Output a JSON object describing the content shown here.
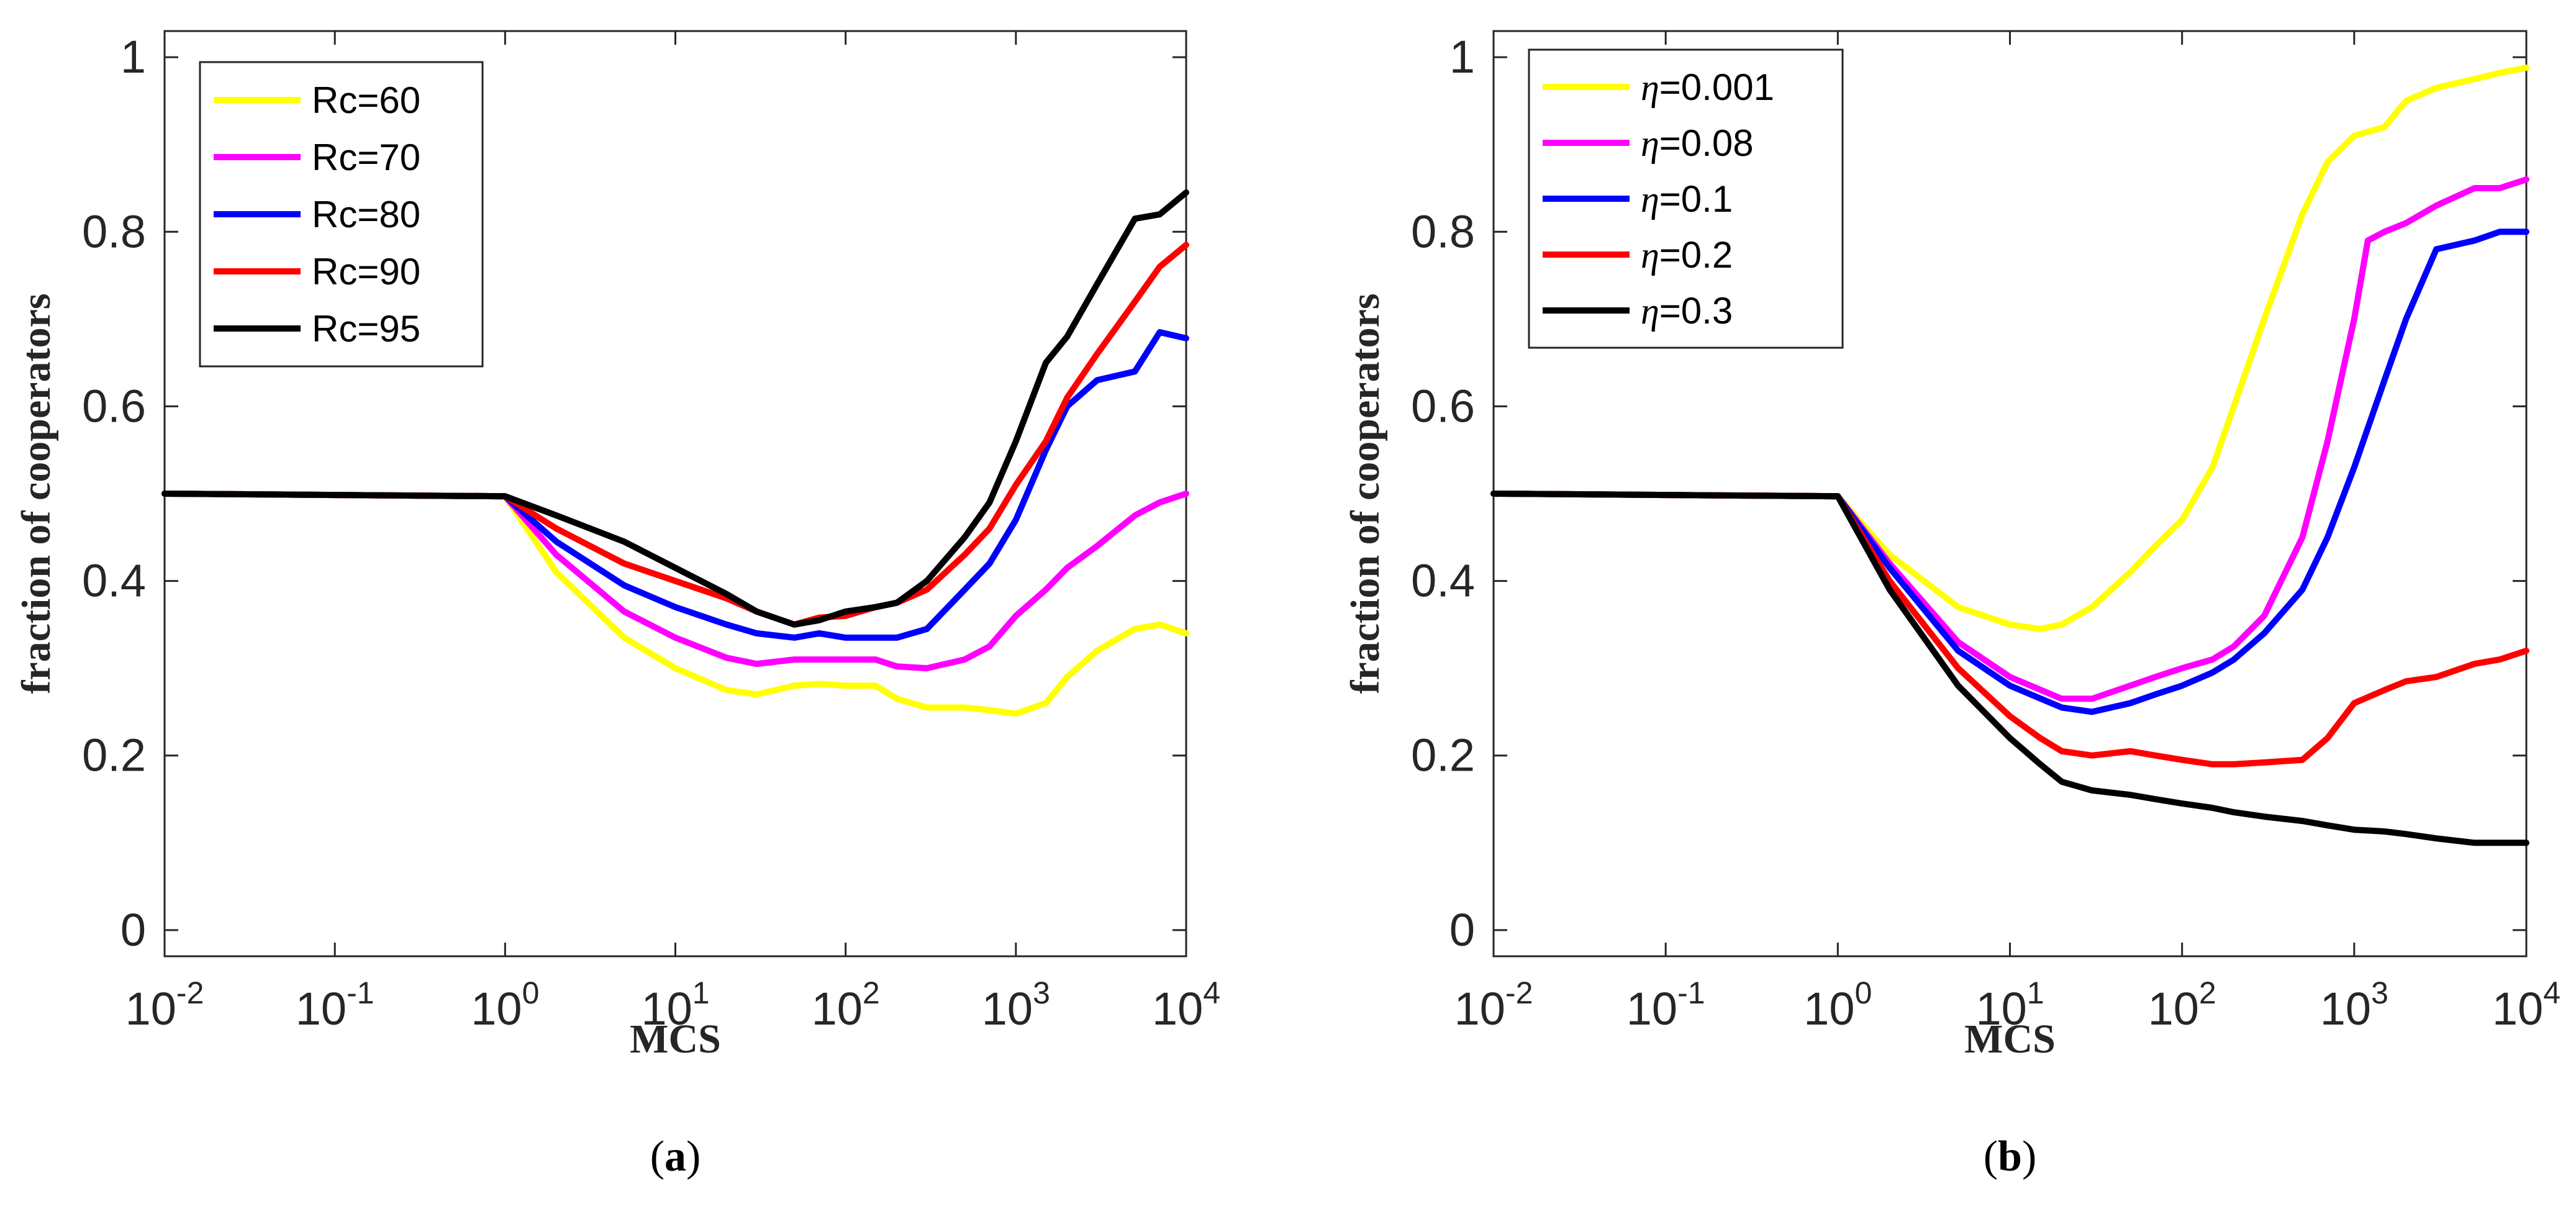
{
  "chart_data": [
    {
      "type": "line",
      "panel_label": "a",
      "caption_open": "(",
      "caption_close": ")",
      "xlabel": "MCS",
      "ylabel": "fraction of cooperators",
      "xscale": "log",
      "xlim": [
        0.01,
        10000
      ],
      "ylim": [
        -0.03,
        1.03
      ],
      "xticks": [
        {
          "value": 0.01,
          "base": "10",
          "exp": "-2"
        },
        {
          "value": 0.1,
          "base": "10",
          "exp": "-1"
        },
        {
          "value": 1,
          "base": "10",
          "exp": "0"
        },
        {
          "value": 10,
          "base": "10",
          "exp": "1"
        },
        {
          "value": 100,
          "base": "10",
          "exp": "2"
        },
        {
          "value": 1000,
          "base": "10",
          "exp": "3"
        },
        {
          "value": 10000,
          "base": "10",
          "exp": "4"
        }
      ],
      "yticks": [
        {
          "value": 0,
          "label": "0"
        },
        {
          "value": 0.2,
          "label": "0.2"
        },
        {
          "value": 0.4,
          "label": "0.4"
        },
        {
          "value": 0.6,
          "label": "0.6"
        },
        {
          "value": 0.8,
          "label": "0.8"
        },
        {
          "value": 1,
          "label": "1"
        }
      ],
      "legend_position": "top-left",
      "series": [
        {
          "name": "Rc=60",
          "prefix": "Rc",
          "suffix": "=60",
          "color": "#ffff00",
          "x": [
            0.01,
            1,
            2,
            5,
            10,
            20,
            30,
            50,
            70,
            100,
            150,
            200,
            300,
            500,
            700,
            1000,
            1500,
            2000,
            3000,
            5000,
            7000,
            10000
          ],
          "y": [
            0.5,
            0.497,
            0.41,
            0.335,
            0.3,
            0.275,
            0.27,
            0.28,
            0.282,
            0.28,
            0.28,
            0.265,
            0.255,
            0.255,
            0.252,
            0.248,
            0.26,
            0.29,
            0.32,
            0.345,
            0.35,
            0.34
          ]
        },
        {
          "name": "Rc=70",
          "prefix": "Rc",
          "suffix": "=70",
          "color": "#ff00ff",
          "x": [
            0.01,
            1,
            2,
            5,
            10,
            20,
            30,
            50,
            70,
            100,
            150,
            200,
            300,
            500,
            700,
            1000,
            1500,
            2000,
            3000,
            5000,
            7000,
            10000
          ],
          "y": [
            0.5,
            0.497,
            0.43,
            0.365,
            0.335,
            0.312,
            0.305,
            0.31,
            0.31,
            0.31,
            0.31,
            0.302,
            0.3,
            0.31,
            0.325,
            0.36,
            0.39,
            0.415,
            0.44,
            0.475,
            0.49,
            0.5
          ]
        },
        {
          "name": "Rc=80",
          "prefix": "Rc",
          "suffix": "=80",
          "color": "#0000ff",
          "x": [
            0.01,
            1,
            2,
            5,
            10,
            20,
            30,
            50,
            70,
            100,
            150,
            200,
            300,
            500,
            700,
            1000,
            1500,
            2000,
            3000,
            5000,
            7000,
            10000
          ],
          "y": [
            0.5,
            0.497,
            0.445,
            0.395,
            0.37,
            0.35,
            0.34,
            0.335,
            0.34,
            0.335,
            0.335,
            0.335,
            0.345,
            0.39,
            0.42,
            0.47,
            0.55,
            0.6,
            0.63,
            0.64,
            0.685,
            0.678
          ]
        },
        {
          "name": "Rc=90",
          "prefix": "Rc",
          "suffix": "=90",
          "color": "#ff0000",
          "x": [
            0.01,
            1,
            2,
            5,
            10,
            20,
            30,
            50,
            70,
            100,
            150,
            200,
            300,
            500,
            700,
            1000,
            1500,
            2000,
            3000,
            5000,
            7000,
            10000
          ],
          "y": [
            0.5,
            0.497,
            0.46,
            0.42,
            0.4,
            0.38,
            0.365,
            0.35,
            0.358,
            0.36,
            0.37,
            0.375,
            0.39,
            0.43,
            0.46,
            0.51,
            0.56,
            0.61,
            0.66,
            0.72,
            0.76,
            0.785
          ]
        },
        {
          "name": "Rc=95",
          "prefix": "Rc",
          "suffix": "=95",
          "color": "#000000",
          "x": [
            0.01,
            1,
            2,
            5,
            10,
            20,
            30,
            50,
            70,
            100,
            150,
            200,
            300,
            500,
            700,
            1000,
            1500,
            2000,
            3000,
            5000,
            7000,
            10000
          ],
          "y": [
            0.5,
            0.497,
            0.475,
            0.445,
            0.415,
            0.385,
            0.365,
            0.35,
            0.355,
            0.365,
            0.37,
            0.375,
            0.4,
            0.45,
            0.49,
            0.56,
            0.65,
            0.68,
            0.74,
            0.815,
            0.82,
            0.845
          ]
        }
      ]
    },
    {
      "type": "line",
      "panel_label": "b",
      "caption_open": "(",
      "caption_close": ")",
      "xlabel": "MCS",
      "ylabel": "fraction of cooperators",
      "xscale": "log",
      "xlim": [
        0.01,
        10000
      ],
      "ylim": [
        -0.03,
        1.03
      ],
      "xticks": [
        {
          "value": 0.01,
          "base": "10",
          "exp": "-2"
        },
        {
          "value": 0.1,
          "base": "10",
          "exp": "-1"
        },
        {
          "value": 1,
          "base": "10",
          "exp": "0"
        },
        {
          "value": 10,
          "base": "10",
          "exp": "1"
        },
        {
          "value": 100,
          "base": "10",
          "exp": "2"
        },
        {
          "value": 1000,
          "base": "10",
          "exp": "3"
        },
        {
          "value": 10000,
          "base": "10",
          "exp": "4"
        }
      ],
      "yticks": [
        {
          "value": 0,
          "label": "0"
        },
        {
          "value": 0.2,
          "label": "0.2"
        },
        {
          "value": 0.4,
          "label": "0.4"
        },
        {
          "value": 0.6,
          "label": "0.6"
        },
        {
          "value": 0.8,
          "label": "0.8"
        },
        {
          "value": 1,
          "label": "1"
        }
      ],
      "legend_position": "top-left",
      "series": [
        {
          "name": "η=0.001",
          "prefix": "η",
          "suffix": "=0.001",
          "color": "#ffff00",
          "x": [
            0.01,
            1,
            2,
            5,
            10,
            15,
            20,
            30,
            50,
            70,
            100,
            150,
            200,
            300,
            500,
            700,
            1000,
            1500,
            2000,
            3000,
            5000,
            7000,
            10000
          ],
          "y": [
            0.5,
            0.497,
            0.43,
            0.37,
            0.35,
            0.345,
            0.35,
            0.37,
            0.41,
            0.44,
            0.47,
            0.53,
            0.6,
            0.7,
            0.82,
            0.88,
            0.91,
            0.92,
            0.95,
            0.965,
            0.975,
            0.982,
            0.988
          ]
        },
        {
          "name": "η=0.08",
          "prefix": "η",
          "suffix": "=0.08",
          "color": "#ff00ff",
          "x": [
            0.01,
            1,
            2,
            5,
            10,
            20,
            30,
            50,
            70,
            100,
            150,
            200,
            300,
            500,
            700,
            1000,
            1200,
            1500,
            2000,
            3000,
            5000,
            7000,
            10000
          ],
          "y": [
            0.5,
            0.497,
            0.42,
            0.33,
            0.29,
            0.265,
            0.265,
            0.28,
            0.29,
            0.3,
            0.31,
            0.325,
            0.36,
            0.45,
            0.56,
            0.7,
            0.79,
            0.8,
            0.81,
            0.83,
            0.85,
            0.85,
            0.86
          ]
        },
        {
          "name": "η=0.1",
          "prefix": "η",
          "suffix": "=0.1",
          "color": "#0000ff",
          "x": [
            0.01,
            1,
            2,
            5,
            10,
            20,
            30,
            50,
            70,
            100,
            150,
            200,
            300,
            500,
            700,
            1000,
            1500,
            2000,
            3000,
            5000,
            7000,
            10000
          ],
          "y": [
            0.5,
            0.497,
            0.415,
            0.32,
            0.28,
            0.255,
            0.25,
            0.26,
            0.27,
            0.28,
            0.295,
            0.31,
            0.34,
            0.39,
            0.45,
            0.53,
            0.63,
            0.7,
            0.78,
            0.79,
            0.8,
            0.8
          ]
        },
        {
          "name": "η=0.2",
          "prefix": "η",
          "suffix": "=0.2",
          "color": "#ff0000",
          "x": [
            0.01,
            1,
            2,
            5,
            10,
            15,
            20,
            30,
            50,
            70,
            100,
            150,
            200,
            300,
            500,
            700,
            1000,
            1500,
            2000,
            3000,
            5000,
            7000,
            10000
          ],
          "y": [
            0.5,
            0.497,
            0.4,
            0.3,
            0.245,
            0.22,
            0.205,
            0.2,
            0.205,
            0.2,
            0.195,
            0.19,
            0.19,
            0.192,
            0.195,
            0.22,
            0.26,
            0.275,
            0.285,
            0.29,
            0.305,
            0.31,
            0.32
          ]
        },
        {
          "name": "η=0.3",
          "prefix": "η",
          "suffix": "=0.3",
          "color": "#000000",
          "x": [
            0.01,
            1,
            2,
            5,
            10,
            15,
            20,
            30,
            50,
            70,
            100,
            150,
            200,
            300,
            500,
            700,
            1000,
            1500,
            2000,
            3000,
            5000,
            7000,
            10000
          ],
          "y": [
            0.5,
            0.497,
            0.39,
            0.28,
            0.22,
            0.19,
            0.17,
            0.16,
            0.155,
            0.15,
            0.145,
            0.14,
            0.135,
            0.13,
            0.125,
            0.12,
            0.115,
            0.113,
            0.11,
            0.105,
            0.1,
            0.1,
            0.1
          ]
        }
      ]
    }
  ]
}
